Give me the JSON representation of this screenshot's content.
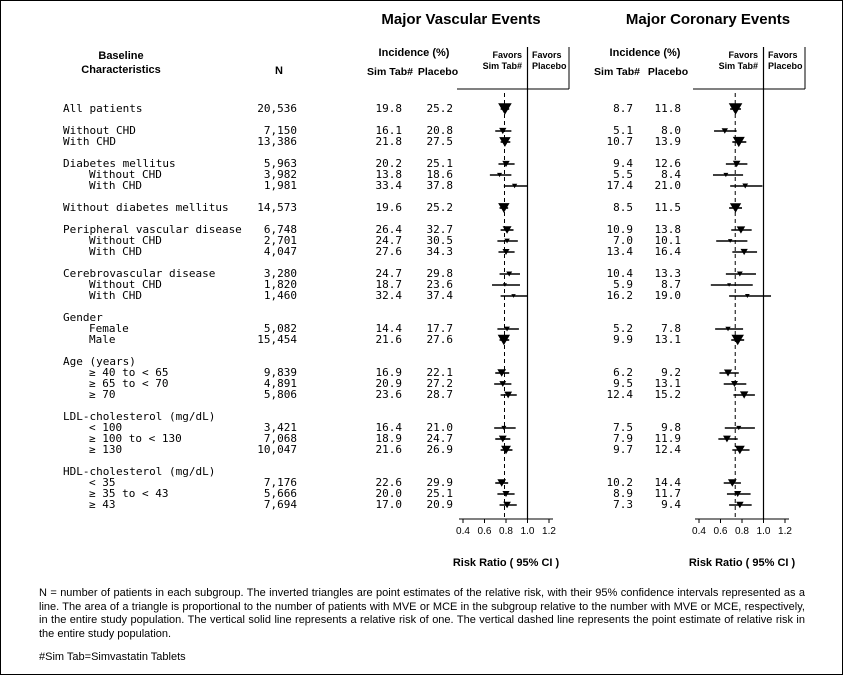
{
  "titles": {
    "mve": "Major Vascular Events",
    "mce": "Major Coronary Events"
  },
  "table_header": {
    "baseline": "Baseline",
    "characteristics": "Characteristics",
    "n": "N"
  },
  "plot_headers": {
    "incidence": "Incidence (%)",
    "sim": "Sim Tab#",
    "placebo": "Placebo",
    "favors_left_line1": "Favors",
    "favors_left_line2": "Sim Tab#",
    "favors_right_line1": "Favors",
    "favors_right_line2": "Placebo"
  },
  "axis": {
    "ticks": [
      "0.4",
      "0.6",
      "0.8",
      "1.0",
      "1.2"
    ],
    "caption": "Risk Ratio ( 95% CI )"
  },
  "footnotes": {
    "main": "N = number of patients in each subgroup. The inverted triangles are point estimates of the relative risk, with their 95% confidence intervals represented as a line. The area of a triangle is proportional to the number of patients with MVE or MCE in the subgroup relative to the number with MVE or MCE, respectively, in the entire study population. The vertical solid line represents a relative risk of one. The vertical dashed line represents the point estimate of relative risk in the entire study population.",
    "sim_tab": "#Sim Tab=Simvastatin Tablets"
  },
  "chart_data": {
    "type": "forest",
    "x_ticks": [
      0.4,
      0.6,
      0.8,
      1.0,
      1.2
    ],
    "xlabel": "Risk Ratio ( 95% CI )",
    "overall_rr": {
      "mve": 0.786,
      "mce": 0.737
    },
    "rows": [
      {
        "label": "All patients",
        "indent": 0,
        "n": "20,536",
        "mve": {
          "sim": "19.8",
          "placebo": "25.2",
          "rr": 0.79,
          "lo": 0.75,
          "hi": 0.83
        },
        "mce": {
          "sim": "8.7",
          "placebo": "11.8",
          "rr": 0.74,
          "lo": 0.69,
          "hi": 0.79
        }
      },
      {
        "label": "Without CHD",
        "indent": 0,
        "group_start": true,
        "n": "7,150",
        "mve": {
          "sim": "16.1",
          "placebo": "20.8",
          "rr": 0.77,
          "lo": 0.7,
          "hi": 0.85
        },
        "mce": {
          "sim": "5.1",
          "placebo": "8.0",
          "rr": 0.64,
          "lo": 0.54,
          "hi": 0.75
        }
      },
      {
        "label": "With CHD",
        "indent": 0,
        "n": "13,386",
        "mve": {
          "sim": "21.8",
          "placebo": "27.5",
          "rr": 0.79,
          "lo": 0.75,
          "hi": 0.84
        },
        "mce": {
          "sim": "10.7",
          "placebo": "13.9",
          "rr": 0.77,
          "lo": 0.71,
          "hi": 0.84
        }
      },
      {
        "label": "Diabetes mellitus",
        "indent": 0,
        "group_start": true,
        "n": "5,963",
        "mve": {
          "sim": "20.2",
          "placebo": "25.1",
          "rr": 0.8,
          "lo": 0.73,
          "hi": 0.88
        },
        "mce": {
          "sim": "9.4",
          "placebo": "12.6",
          "rr": 0.75,
          "lo": 0.65,
          "hi": 0.85
        }
      },
      {
        "label": "Without CHD",
        "indent": 1,
        "n": "3,982",
        "mve": {
          "sim": "13.8",
          "placebo": "18.6",
          "rr": 0.74,
          "lo": 0.65,
          "hi": 0.85
        },
        "mce": {
          "sim": "5.5",
          "placebo": "8.4",
          "rr": 0.65,
          "lo": 0.53,
          "hi": 0.81
        }
      },
      {
        "label": "With CHD",
        "indent": 1,
        "n": "1,981",
        "mve": {
          "sim": "33.4",
          "placebo": "37.8",
          "rr": 0.88,
          "lo": 0.78,
          "hi": 1.0
        },
        "mce": {
          "sim": "17.4",
          "placebo": "21.0",
          "rr": 0.83,
          "lo": 0.69,
          "hi": 0.99
        }
      },
      {
        "label": "Without diabetes mellitus",
        "indent": 0,
        "group_start": true,
        "n": "14,573",
        "mve": {
          "sim": "19.6",
          "placebo": "25.2",
          "rr": 0.78,
          "lo": 0.74,
          "hi": 0.82
        },
        "mce": {
          "sim": "8.5",
          "placebo": "11.5",
          "rr": 0.74,
          "lo": 0.68,
          "hi": 0.8
        }
      },
      {
        "label": "Peripheral vascular disease",
        "indent": 0,
        "group_start": true,
        "n": "6,748",
        "mve": {
          "sim": "26.4",
          "placebo": "32.7",
          "rr": 0.81,
          "lo": 0.75,
          "hi": 0.87
        },
        "mce": {
          "sim": "10.9",
          "placebo": "13.8",
          "rr": 0.79,
          "lo": 0.7,
          "hi": 0.89
        }
      },
      {
        "label": "Without CHD",
        "indent": 1,
        "n": "2,701",
        "mve": {
          "sim": "24.7",
          "placebo": "30.5",
          "rr": 0.81,
          "lo": 0.72,
          "hi": 0.91
        },
        "mce": {
          "sim": "7.0",
          "placebo": "10.1",
          "rr": 0.69,
          "lo": 0.56,
          "hi": 0.85
        }
      },
      {
        "label": "With CHD",
        "indent": 1,
        "n": "4,047",
        "mve": {
          "sim": "27.6",
          "placebo": "34.3",
          "rr": 0.8,
          "lo": 0.73,
          "hi": 0.88
        },
        "mce": {
          "sim": "13.4",
          "placebo": "16.4",
          "rr": 0.82,
          "lo": 0.71,
          "hi": 0.94
        }
      },
      {
        "label": "Cerebrovascular disease",
        "indent": 0,
        "group_start": true,
        "n": "3,280",
        "mve": {
          "sim": "24.7",
          "placebo": "29.8",
          "rr": 0.83,
          "lo": 0.74,
          "hi": 0.93
        },
        "mce": {
          "sim": "10.4",
          "placebo": "13.3",
          "rr": 0.78,
          "lo": 0.65,
          "hi": 0.93
        }
      },
      {
        "label": "Without CHD",
        "indent": 1,
        "n": "1,820",
        "mve": {
          "sim": "18.7",
          "placebo": "23.6",
          "rr": 0.79,
          "lo": 0.67,
          "hi": 0.93
        },
        "mce": {
          "sim": "5.9",
          "placebo": "8.7",
          "rr": 0.68,
          "lo": 0.51,
          "hi": 0.9
        }
      },
      {
        "label": "With CHD",
        "indent": 1,
        "n": "1,460",
        "mve": {
          "sim": "32.4",
          "placebo": "37.4",
          "rr": 0.87,
          "lo": 0.75,
          "hi": 1.0
        },
        "mce": {
          "sim": "16.2",
          "placebo": "19.0",
          "rr": 0.85,
          "lo": 0.68,
          "hi": 1.07
        }
      },
      {
        "label": "Gender",
        "indent": 0,
        "group_start": true,
        "header": true
      },
      {
        "label": "Female",
        "indent": 1,
        "n": "5,082",
        "mve": {
          "sim": "14.4",
          "placebo": "17.7",
          "rr": 0.81,
          "lo": 0.72,
          "hi": 0.92
        },
        "mce": {
          "sim": "5.2",
          "placebo": "7.8",
          "rr": 0.67,
          "lo": 0.55,
          "hi": 0.81
        }
      },
      {
        "label": "Male",
        "indent": 1,
        "n": "15,454",
        "mve": {
          "sim": "21.6",
          "placebo": "27.6",
          "rr": 0.78,
          "lo": 0.74,
          "hi": 0.83
        },
        "mce": {
          "sim": "9.9",
          "placebo": "13.1",
          "rr": 0.76,
          "lo": 0.7,
          "hi": 0.82
        }
      },
      {
        "label": "Age (years)",
        "indent": 0,
        "group_start": true,
        "header": true
      },
      {
        "label": "≥ 40 to < 65",
        "indent": 1,
        "n": "9,839",
        "mve": {
          "sim": "16.9",
          "placebo": "22.1",
          "rr": 0.76,
          "lo": 0.7,
          "hi": 0.83
        },
        "mce": {
          "sim": "6.2",
          "placebo": "9.2",
          "rr": 0.67,
          "lo": 0.59,
          "hi": 0.77
        }
      },
      {
        "label": "≥ 65 to < 70",
        "indent": 1,
        "n": "4,891",
        "mve": {
          "sim": "20.9",
          "placebo": "27.2",
          "rr": 0.77,
          "lo": 0.69,
          "hi": 0.85
        },
        "mce": {
          "sim": "9.5",
          "placebo": "13.1",
          "rr": 0.73,
          "lo": 0.63,
          "hi": 0.84
        }
      },
      {
        "label": "≥ 70",
        "indent": 1,
        "n": "5,806",
        "mve": {
          "sim": "23.6",
          "placebo": "28.7",
          "rr": 0.82,
          "lo": 0.75,
          "hi": 0.9
        },
        "mce": {
          "sim": "12.4",
          "placebo": "15.2",
          "rr": 0.82,
          "lo": 0.72,
          "hi": 0.92
        }
      },
      {
        "label": "LDL-cholesterol (mg/dL)",
        "indent": 0,
        "group_start": true,
        "header": true
      },
      {
        "label": "< 100",
        "indent": 1,
        "n": "3,421",
        "mve": {
          "sim": "16.4",
          "placebo": "21.0",
          "rr": 0.78,
          "lo": 0.69,
          "hi": 0.89
        },
        "mce": {
          "sim": "7.5",
          "placebo": "9.8",
          "rr": 0.77,
          "lo": 0.64,
          "hi": 0.92
        }
      },
      {
        "label": "≥ 100 to < 130",
        "indent": 1,
        "n": "7,068",
        "mve": {
          "sim": "18.9",
          "placebo": "24.7",
          "rr": 0.77,
          "lo": 0.7,
          "hi": 0.84
        },
        "mce": {
          "sim": "7.9",
          "placebo": "11.9",
          "rr": 0.66,
          "lo": 0.58,
          "hi": 0.76
        }
      },
      {
        "label": "≥ 130",
        "indent": 1,
        "n": "10,047",
        "mve": {
          "sim": "21.6",
          "placebo": "26.9",
          "rr": 0.8,
          "lo": 0.75,
          "hi": 0.86
        },
        "mce": {
          "sim": "9.7",
          "placebo": "12.4",
          "rr": 0.78,
          "lo": 0.71,
          "hi": 0.87
        }
      },
      {
        "label": "HDL-cholesterol (mg/dL)",
        "indent": 0,
        "group_start": true,
        "header": true
      },
      {
        "label": "< 35",
        "indent": 1,
        "n": "7,176",
        "mve": {
          "sim": "22.6",
          "placebo": "29.9",
          "rr": 0.76,
          "lo": 0.7,
          "hi": 0.82
        },
        "mce": {
          "sim": "10.2",
          "placebo": "14.4",
          "rr": 0.71,
          "lo": 0.63,
          "hi": 0.79
        }
      },
      {
        "label": "≥ 35 to < 43",
        "indent": 1,
        "n": "5,666",
        "mve": {
          "sim": "20.0",
          "placebo": "25.1",
          "rr": 0.8,
          "lo": 0.72,
          "hi": 0.88
        },
        "mce": {
          "sim": "8.9",
          "placebo": "11.7",
          "rr": 0.76,
          "lo": 0.66,
          "hi": 0.88
        }
      },
      {
        "label": "≥ 43",
        "indent": 1,
        "n": "7,694",
        "mve": {
          "sim": "17.0",
          "placebo": "20.9",
          "rr": 0.81,
          "lo": 0.74,
          "hi": 0.9
        },
        "mce": {
          "sim": "7.3",
          "placebo": "9.4",
          "rr": 0.78,
          "lo": 0.68,
          "hi": 0.89
        }
      }
    ]
  }
}
